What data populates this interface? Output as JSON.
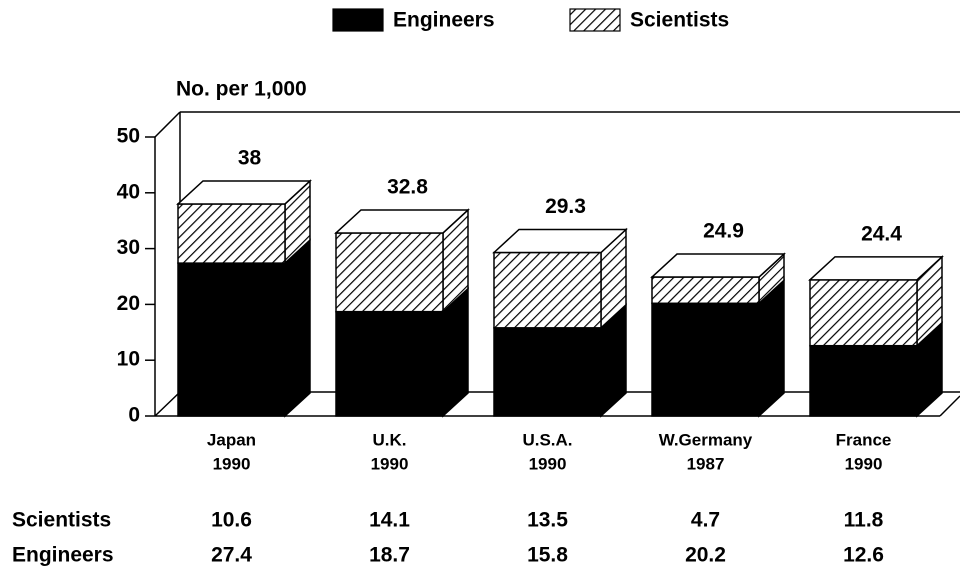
{
  "chart_data": {
    "type": "bar",
    "stacked": true,
    "y_label": "No. per 1,000",
    "categories": [
      "Japan",
      "U.K.",
      "U.S.A.",
      "W.Germany",
      "France"
    ],
    "years": [
      "1990",
      "1990",
      "1990",
      "1987",
      "1990"
    ],
    "series": [
      {
        "name": "Engineers",
        "color": "#000000",
        "values": [
          27.4,
          18.7,
          15.8,
          20.2,
          12.6
        ]
      },
      {
        "name": "Scientists",
        "color": "hatch",
        "values": [
          10.6,
          14.1,
          13.5,
          4.7,
          11.8
        ]
      }
    ],
    "totals": [
      38,
      32.8,
      29.3,
      24.9,
      24.4
    ],
    "ylim": [
      0,
      50
    ],
    "yticks": [
      0,
      10,
      20,
      30,
      40,
      50
    ],
    "legend": "top"
  }
}
